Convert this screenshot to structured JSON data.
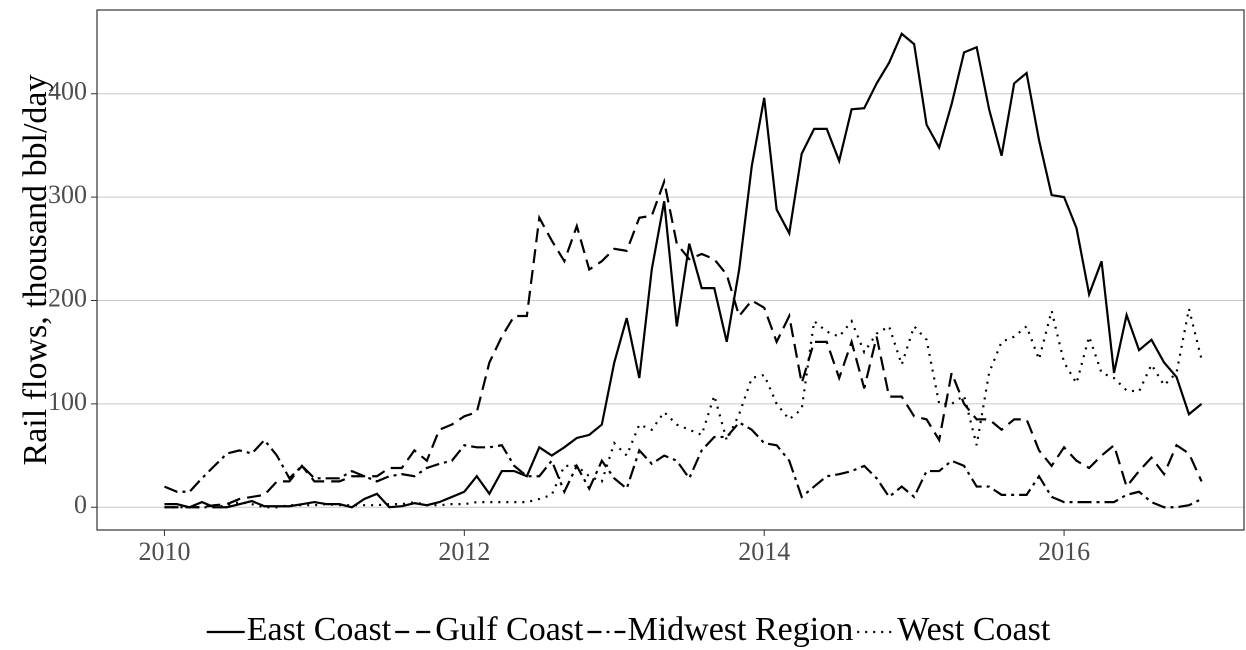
{
  "chart_data": {
    "type": "line",
    "y_label": "Rail flows, thousand bbl/day",
    "x": [
      2010,
      2010.083,
      2010.167,
      2010.25,
      2010.333,
      2010.417,
      2010.5,
      2010.583,
      2010.667,
      2010.75,
      2010.833,
      2010.917,
      2011,
      2011.083,
      2011.167,
      2011.25,
      2011.333,
      2011.417,
      2011.5,
      2011.583,
      2011.667,
      2011.75,
      2011.833,
      2011.917,
      2012,
      2012.083,
      2012.167,
      2012.25,
      2012.333,
      2012.417,
      2012.5,
      2012.583,
      2012.667,
      2012.75,
      2012.833,
      2012.917,
      2013,
      2013.083,
      2013.167,
      2013.25,
      2013.333,
      2013.417,
      2013.5,
      2013.583,
      2013.667,
      2013.75,
      2013.833,
      2013.917,
      2014,
      2014.083,
      2014.167,
      2014.25,
      2014.333,
      2014.417,
      2014.5,
      2014.583,
      2014.667,
      2014.75,
      2014.833,
      2014.917,
      2015,
      2015.083,
      2015.167,
      2015.25,
      2015.333,
      2015.417,
      2015.5,
      2015.583,
      2015.667,
      2015.75,
      2015.833,
      2015.917,
      2016,
      2016.083,
      2016.167,
      2016.25,
      2016.333,
      2016.417,
      2016.5,
      2016.583,
      2016.667,
      2016.75,
      2016.833,
      2016.917
    ],
    "series": [
      {
        "name": "East Coast",
        "color": "#000000",
        "linestyle": "solid",
        "values": [
          3,
          3,
          0,
          5,
          0,
          0,
          3,
          6,
          1,
          1,
          1,
          3,
          5,
          3,
          3,
          0,
          8,
          13,
          0,
          1,
          4,
          2,
          5,
          10,
          15,
          30,
          13,
          35,
          35,
          30,
          58,
          50,
          58,
          67,
          70,
          80,
          140,
          183,
          125,
          230,
          296,
          175,
          255,
          212,
          212,
          160,
          230,
          330,
          396,
          288,
          265,
          342,
          366,
          366,
          335,
          385,
          386,
          410,
          430,
          458,
          448,
          370,
          348,
          390,
          440,
          445,
          385,
          340,
          410,
          420,
          355,
          302,
          300,
          270,
          206,
          238,
          130,
          186,
          152,
          162,
          140,
          126,
          90,
          100
        ]
      },
      {
        "name": "Gulf Coast",
        "color": "#000000",
        "linestyle": "dashed",
        "values": [
          0,
          0,
          0,
          0,
          2,
          3,
          8,
          10,
          12,
          25,
          25,
          40,
          25,
          25,
          25,
          30,
          30,
          30,
          38,
          38,
          55,
          45,
          75,
          80,
          88,
          92,
          140,
          165,
          185,
          185,
          280,
          258,
          238,
          272,
          230,
          238,
          250,
          248,
          280,
          282,
          315,
          255,
          240,
          245,
          240,
          225,
          185,
          200,
          193,
          160,
          185,
          120,
          160,
          160,
          125,
          160,
          115,
          165,
          107,
          107,
          88,
          85,
          65,
          130,
          100,
          85,
          85,
          75,
          85,
          85,
          55,
          40,
          58,
          45,
          38,
          50,
          60,
          20,
          35,
          48,
          32,
          60,
          52,
          25
        ]
      },
      {
        "name": "Midwest Region",
        "color": "#000000",
        "linestyle": "dashdot",
        "values": [
          20,
          15,
          15,
          28,
          40,
          52,
          55,
          52,
          65,
          50,
          28,
          40,
          28,
          28,
          28,
          35,
          30,
          25,
          30,
          32,
          30,
          38,
          42,
          45,
          60,
          58,
          58,
          60,
          40,
          30,
          30,
          45,
          15,
          40,
          18,
          45,
          28,
          18,
          55,
          42,
          50,
          45,
          28,
          55,
          68,
          68,
          82,
          75,
          62,
          60,
          45,
          10,
          20,
          30,
          32,
          35,
          40,
          28,
          10,
          20,
          10,
          35,
          35,
          45,
          40,
          20,
          20,
          12,
          12,
          12,
          30,
          10,
          5,
          5,
          5,
          5,
          5,
          12,
          15,
          5,
          0,
          0,
          2,
          8
        ]
      },
      {
        "name": "West Coast",
        "color": "#000000",
        "linestyle": "dotted",
        "values": [
          0,
          0,
          0,
          0,
          0,
          2,
          5,
          3,
          0,
          0,
          2,
          2,
          2,
          3,
          2,
          2,
          2,
          2,
          3,
          3,
          5,
          2,
          2,
          3,
          3,
          5,
          5,
          5,
          5,
          5,
          8,
          12,
          40,
          40,
          30,
          25,
          62,
          50,
          80,
          75,
          92,
          80,
          75,
          70,
          108,
          65,
          90,
          125,
          128,
          100,
          85,
          95,
          180,
          170,
          165,
          180,
          150,
          168,
          175,
          138,
          175,
          162,
          100,
          100,
          108,
          60,
          130,
          160,
          165,
          175,
          143,
          190,
          140,
          120,
          165,
          130,
          125,
          113,
          112,
          138,
          118,
          130,
          192,
          143
        ]
      }
    ],
    "xlim": [
      2009.55,
      2017.2
    ],
    "xticks": [
      2010,
      2012,
      2014,
      2016
    ],
    "ylim": [
      -22,
      481
    ],
    "yticks": [
      0,
      100,
      200,
      300,
      400
    ],
    "grid": true,
    "legend": "bottom"
  }
}
